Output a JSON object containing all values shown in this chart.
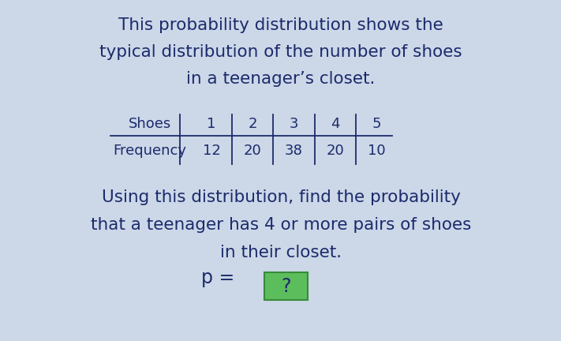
{
  "title_line1": "This probability distribution shows the",
  "title_line2": "typical distribution of the number of shoes",
  "title_line3": "in a teenager’s closet.",
  "table_header": [
    "Shoes",
    "1",
    "2",
    "3",
    "4",
    "5"
  ],
  "table_row": [
    "Frequency",
    "12",
    "20",
    "38",
    "20",
    "10"
  ],
  "question_line1": "Using this distribution, find the probability",
  "question_line2": "that a teenager has 4 or more pairs of shoes",
  "question_line3": "in their closet.",
  "answer_label": "p = ",
  "answer_box": "?",
  "bg_color": "#ccd7e8",
  "text_color": "#1c2b6b",
  "box_color": "#5cbd5c",
  "box_edge_color": "#3a8a3a",
  "title_fontsize": 15.5,
  "table_fontsize": 13,
  "question_fontsize": 15.5,
  "answer_fontsize": 17
}
